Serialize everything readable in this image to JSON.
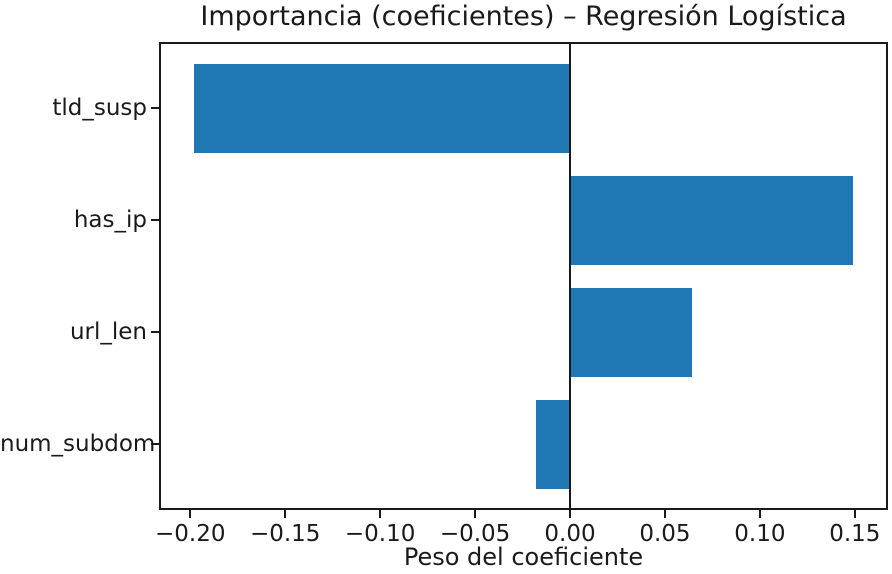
{
  "chart_data": {
    "type": "bar",
    "orientation": "horizontal",
    "title": "Importancia (coeficientes) – Regresión Logística",
    "xlabel": "Peso del coeficiente",
    "ylabel": "",
    "categories": [
      "tld_susp",
      "has_ip",
      "url_len",
      "num_subdom"
    ],
    "values": [
      -0.198,
      0.149,
      0.064,
      -0.018
    ],
    "xlim": [
      -0.2154,
      0.1664
    ],
    "x_ticks": [
      -0.2,
      -0.15,
      -0.1,
      -0.05,
      0.0,
      0.05,
      0.1,
      0.15
    ],
    "x_tick_labels": [
      "−0.20",
      "−0.15",
      "−0.10",
      "−0.05",
      "0.00",
      "0.05",
      "0.10",
      "0.15"
    ],
    "zero_line": true,
    "grid": false,
    "legend": null,
    "bar_color": "#1f77b4",
    "axis_color": "#1a1a1a",
    "text_color": "#1a1a1a",
    "background": "#ffffff"
  }
}
